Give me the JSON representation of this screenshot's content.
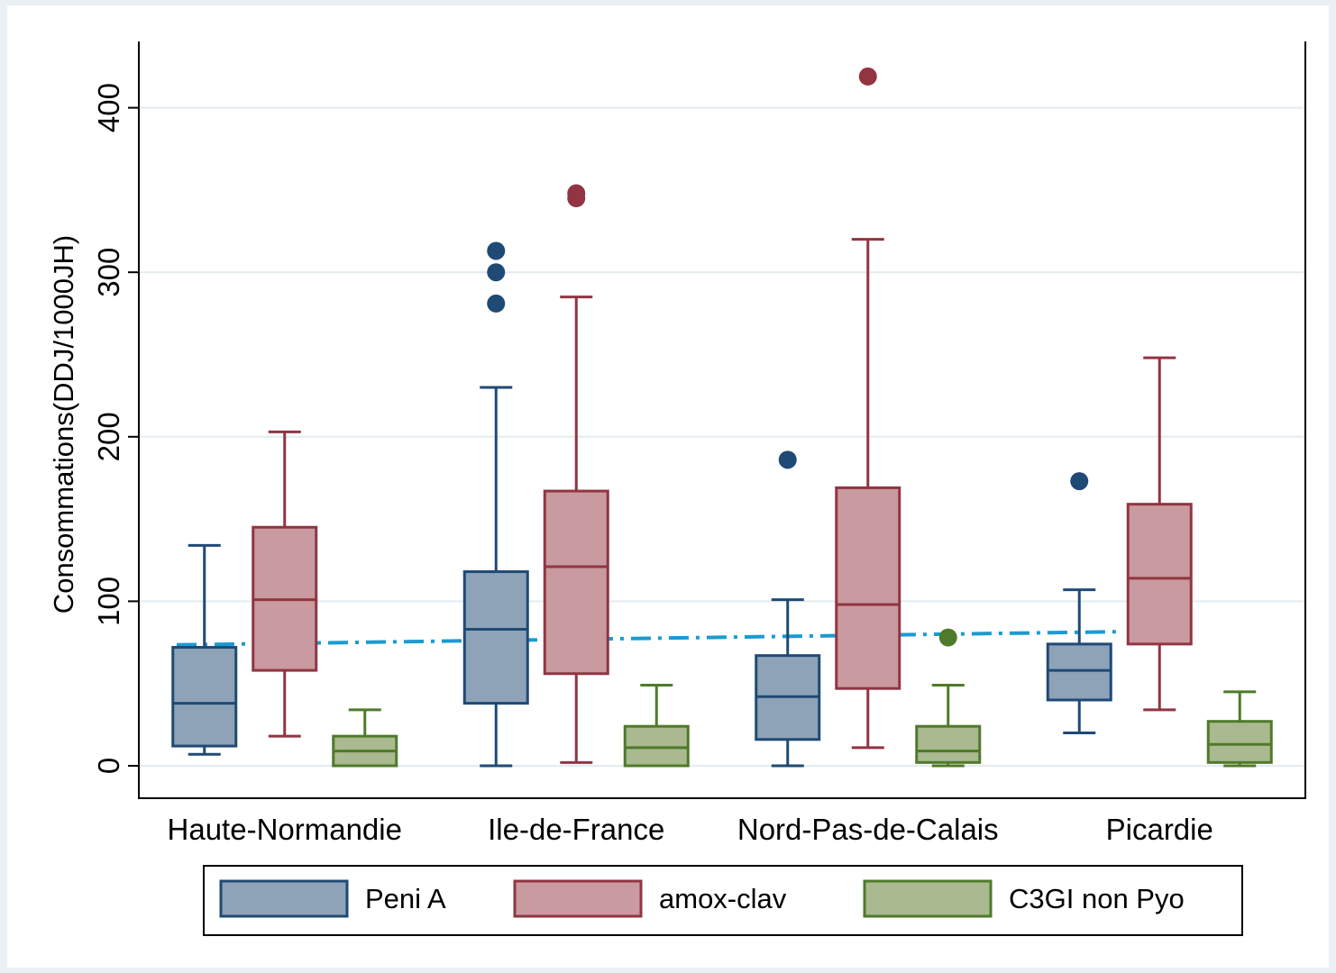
{
  "chart_data": {
    "type": "box",
    "title": "",
    "xlabel": "",
    "ylabel": "Consommations(DDJ/1000JH)",
    "ylim": [
      -20,
      440
    ],
    "yticks": [
      0,
      100,
      200,
      300,
      400
    ],
    "grid": true,
    "categories": [
      "Haute-Normandie",
      "Ile-de-France",
      "Nord-Pas-de-Calais",
      "Picardie"
    ],
    "legend_position": "bottom",
    "series": [
      {
        "name": "Peni A",
        "fill": "#8ea2b8",
        "stroke": "#1f4a75",
        "boxes": [
          {
            "whisker_low": 7,
            "q1": 12,
            "median": 38,
            "q3": 72,
            "whisker_high": 134,
            "outliers": []
          },
          {
            "whisker_low": 0,
            "q1": 38,
            "median": 83,
            "q3": 118,
            "whisker_high": 230,
            "outliers": [
              281,
              300,
              313
            ]
          },
          {
            "whisker_low": 0,
            "q1": 16,
            "median": 42,
            "q3": 67,
            "whisker_high": 101,
            "outliers": [
              186
            ]
          },
          {
            "whisker_low": 20,
            "q1": 40,
            "median": 58,
            "q3": 74,
            "whisker_high": 107,
            "outliers": [
              173
            ]
          }
        ]
      },
      {
        "name": "amox-clav",
        "fill": "#c99a9f",
        "stroke": "#913542",
        "boxes": [
          {
            "whisker_low": 18,
            "q1": 58,
            "median": 101,
            "q3": 145,
            "whisker_high": 203,
            "outliers": []
          },
          {
            "whisker_low": 2,
            "q1": 56,
            "median": 121,
            "q3": 167,
            "whisker_high": 285,
            "outliers": [
              345,
              348
            ]
          },
          {
            "whisker_low": 11,
            "q1": 47,
            "median": 98,
            "q3": 169,
            "whisker_high": 320,
            "outliers": [
              419
            ]
          },
          {
            "whisker_low": 34,
            "q1": 74,
            "median": 114,
            "q3": 159,
            "whisker_high": 248,
            "outliers": []
          }
        ]
      },
      {
        "name": "C3GI non Pyo",
        "fill": "#aab98f",
        "stroke": "#4f7a2a",
        "boxes": [
          {
            "whisker_low": 0,
            "q1": 0,
            "median": 9,
            "q3": 18,
            "whisker_high": 34,
            "outliers": []
          },
          {
            "whisker_low": 0,
            "q1": 0,
            "median": 11,
            "q3": 24,
            "whisker_high": 49,
            "outliers": []
          },
          {
            "whisker_low": 0,
            "q1": 2,
            "median": 9,
            "q3": 24,
            "whisker_high": 49,
            "outliers": [
              78
            ]
          },
          {
            "whisker_low": 0,
            "q1": 2,
            "median": 13,
            "q3": 27,
            "whisker_high": 45,
            "outliers": []
          }
        ]
      }
    ],
    "reference_line": {
      "style": "dash-dot",
      "color": "#1a9bd0",
      "values": [
        73.5,
        81.5
      ]
    }
  }
}
